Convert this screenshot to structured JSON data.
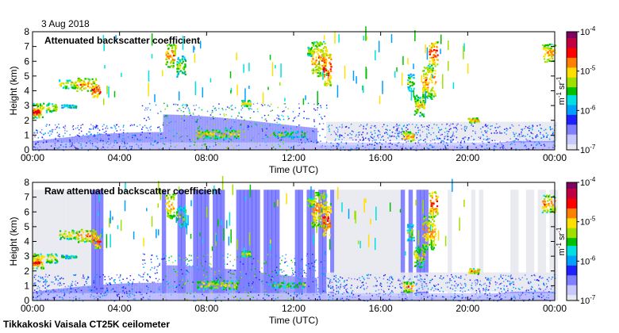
{
  "date_label": "3 Aug 2018",
  "footer": "Tikkakoski Vaisala CT25K ceilometer",
  "colors": {
    "palette": [
      "#e8e8f0",
      "#c8c8ff",
      "#8080ff",
      "#2020ff",
      "#00a0ff",
      "#00e0e0",
      "#00c000",
      "#a0e000",
      "#ffe000",
      "#ff8000",
      "#ff0000",
      "#c00040",
      "#800060"
    ],
    "background_noise": "#d0d0e0"
  },
  "chart_data": [
    {
      "type": "heatmap",
      "title": "Attenuated backscatter coefficient",
      "xlabel": "Time (UTC)",
      "ylabel": "Height (km)",
      "x_ticks": [
        "00:00",
        "04:00",
        "08:00",
        "12:00",
        "16:00",
        "20:00",
        "00:00"
      ],
      "y_ticks": [
        "0",
        "1",
        "2",
        "3",
        "4",
        "5",
        "6",
        "7",
        "8"
      ],
      "xlim_hours": [
        0,
        24
      ],
      "ylim_km": [
        0,
        8
      ],
      "colorbar": {
        "label_parts": [
          "m",
          "-1",
          " sr",
          "-1"
        ],
        "scale": "log",
        "range": [
          1e-07,
          0.0001
        ],
        "ticks": [
          {
            "base": "10",
            "exp": "-4",
            "value": -4
          },
          {
            "base": "10",
            "exp": "-5",
            "value": -5
          },
          {
            "base": "10",
            "exp": "-6",
            "value": -6
          },
          {
            "base": "10",
            "exp": "-7",
            "value": -7
          }
        ]
      }
    },
    {
      "type": "heatmap",
      "title": "Raw attenuated backscatter coefficient",
      "xlabel": "Time (UTC)",
      "ylabel": "Height (km)",
      "x_ticks": [
        "00:00",
        "04:00",
        "08:00",
        "12:00",
        "16:00",
        "20:00",
        "00:00"
      ],
      "y_ticks": [
        "0",
        "1",
        "2",
        "3",
        "4",
        "5",
        "6",
        "7",
        "8"
      ],
      "xlim_hours": [
        0,
        24
      ],
      "ylim_km": [
        0,
        8
      ],
      "colorbar": {
        "label_parts": [
          "m",
          "-1",
          " sr",
          "-1"
        ],
        "scale": "log",
        "range": [
          1e-07,
          0.0001
        ],
        "ticks": [
          {
            "base": "10",
            "exp": "-4",
            "value": -4
          },
          {
            "base": "10",
            "exp": "-5",
            "value": -5
          },
          {
            "base": "10",
            "exp": "-6",
            "value": -6
          },
          {
            "base": "10",
            "exp": "-7",
            "value": -7
          }
        ]
      }
    }
  ]
}
